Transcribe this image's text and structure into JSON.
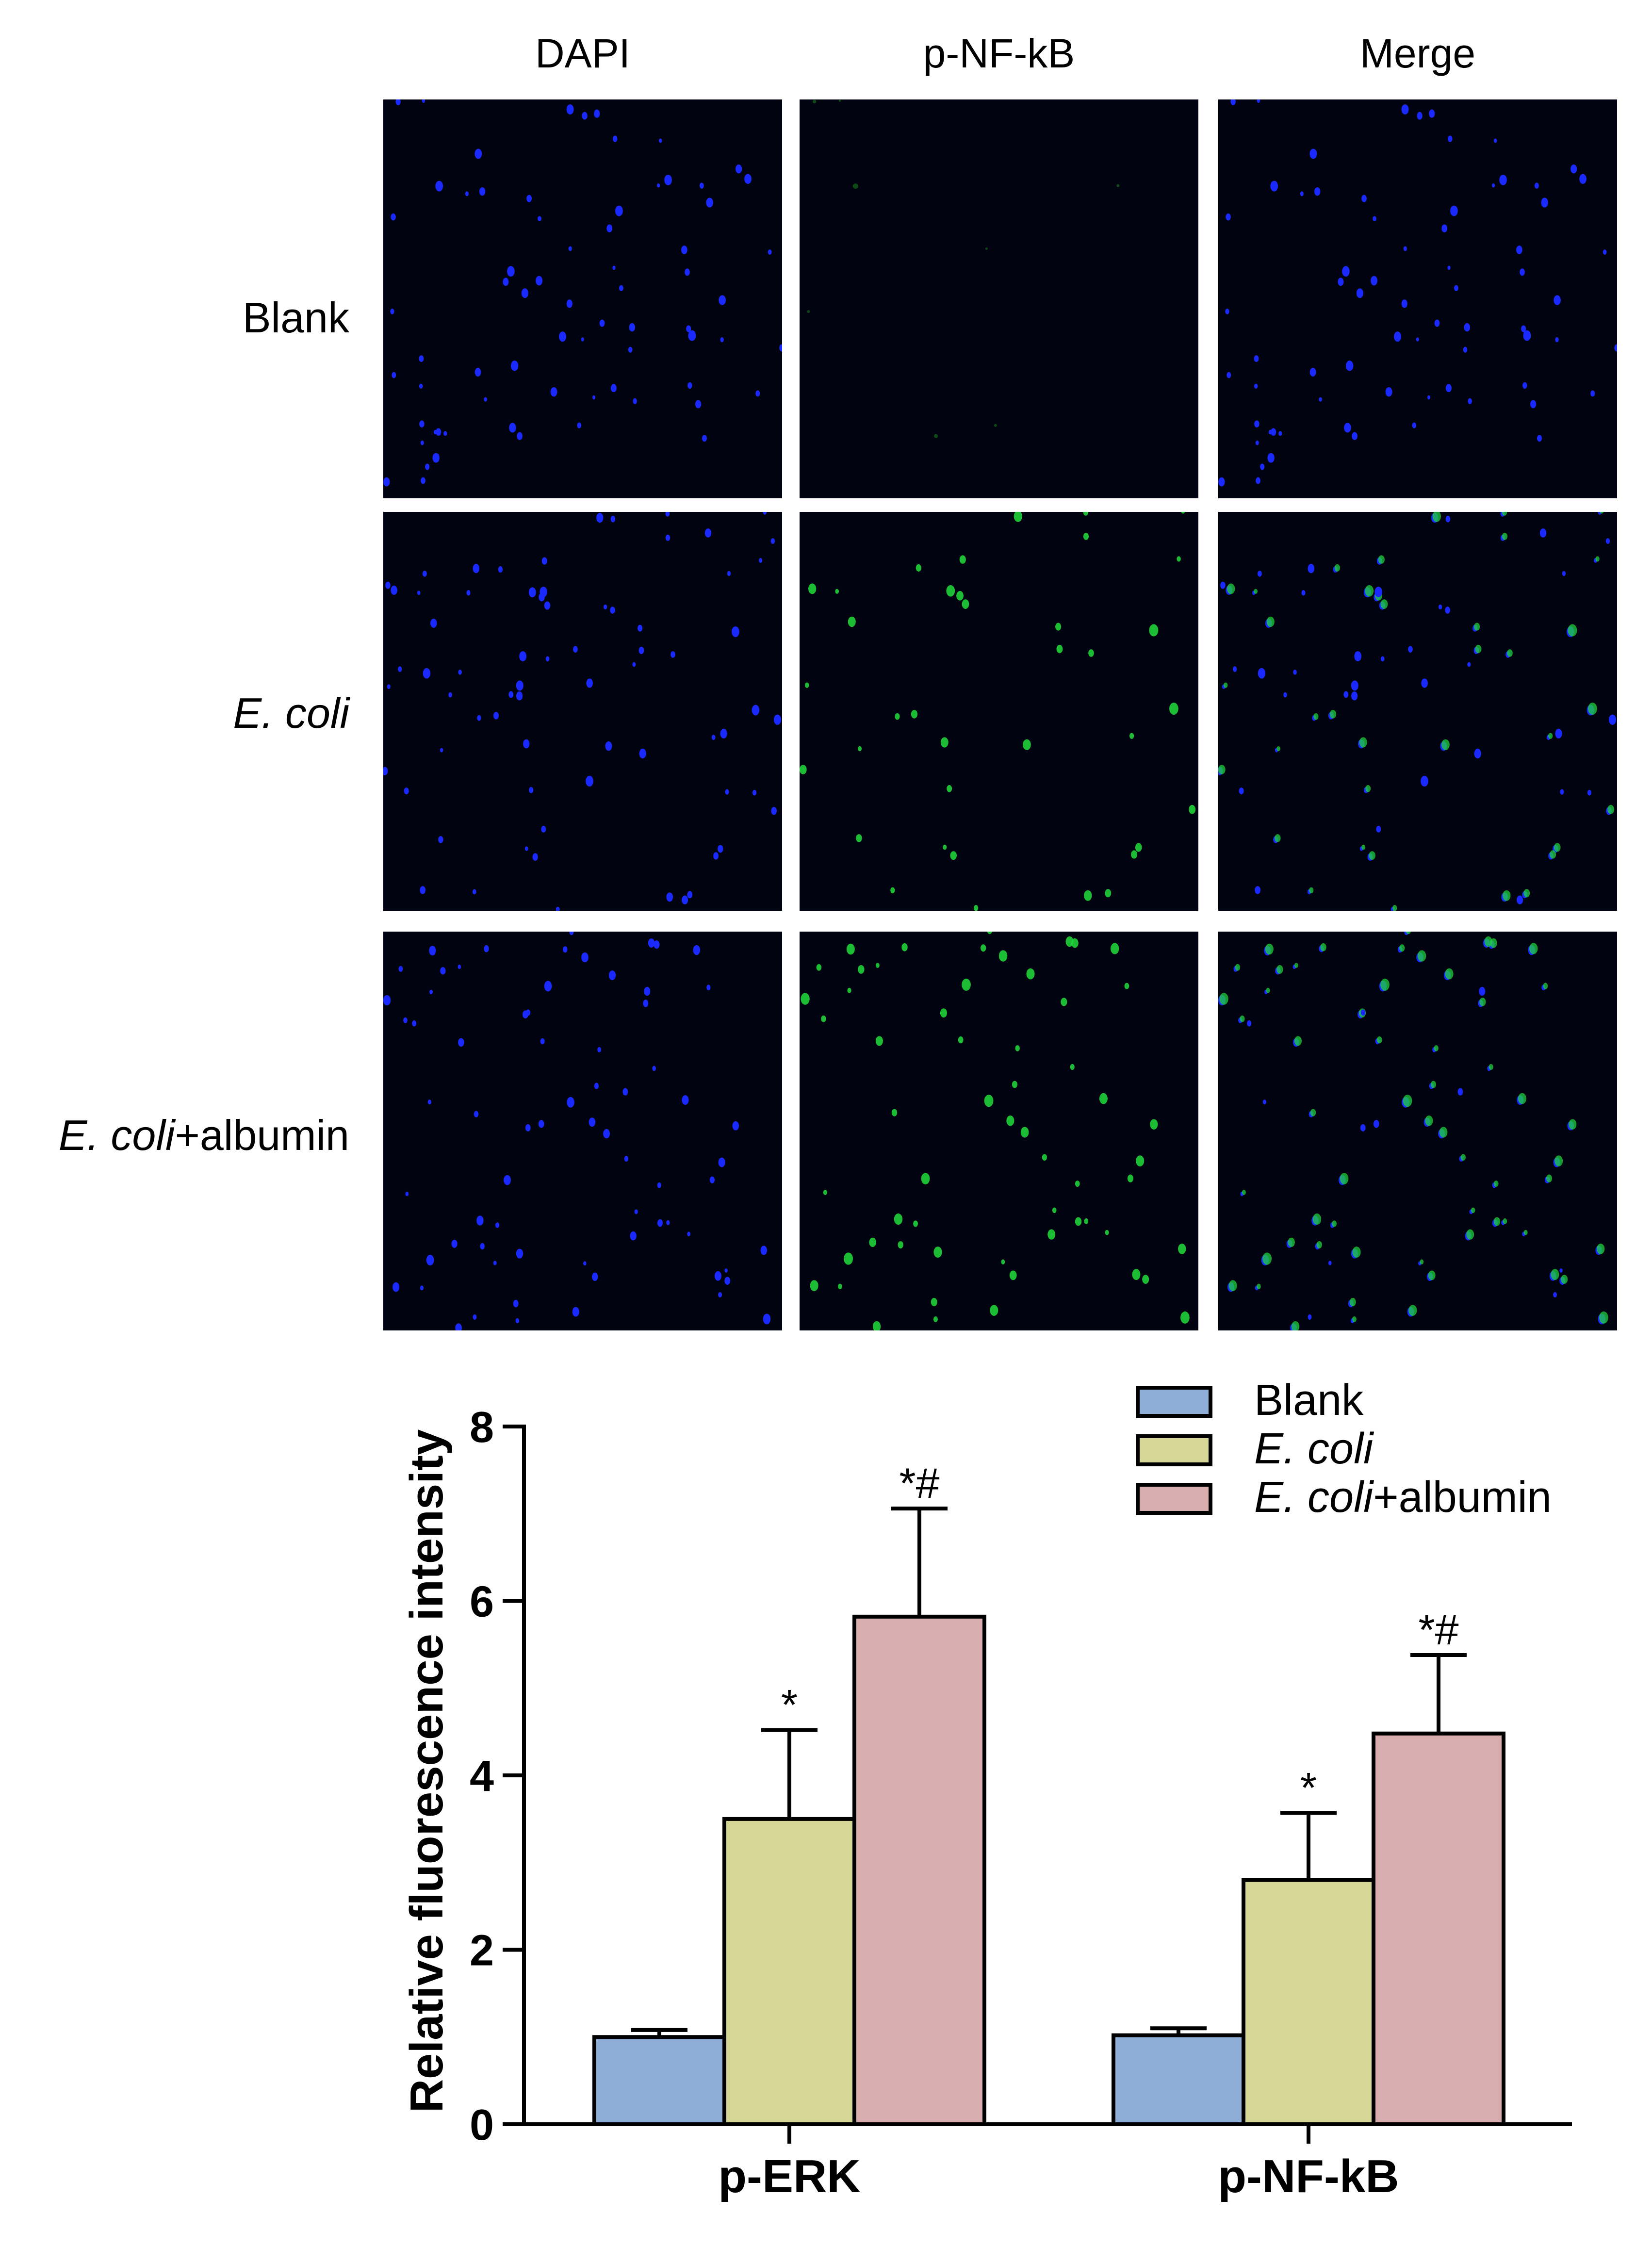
{
  "figure": {
    "columns": [
      "DAPI",
      "p-NF-kB",
      "Merge"
    ],
    "rows": [
      {
        "italic": "",
        "plain": "Blank"
      },
      {
        "italic": "E. coli",
        "plain": ""
      },
      {
        "italic": "E. coli",
        "plain": "+albumin"
      }
    ],
    "colors": {
      "dapi": "#1a2aff",
      "pnfkb": "#1fd23a",
      "panel_bg": "#020310"
    }
  },
  "chart_data": {
    "type": "bar",
    "categories": [
      "p-ERK",
      "p-NF-kB"
    ],
    "ylabel": "Relative fluorescence intensity",
    "ylim": [
      0,
      8
    ],
    "yticks": [
      0,
      2,
      4,
      6,
      8
    ],
    "legend_position": "top-right",
    "series": [
      {
        "name": "Blank",
        "name_italic": "",
        "name_plain": "Blank",
        "color": "#8eaed8",
        "values": [
          1.0,
          1.02
        ],
        "errors": [
          0.08,
          0.08
        ],
        "marks": [
          "",
          ""
        ]
      },
      {
        "name": "E. coli",
        "name_italic": "E. coli",
        "name_plain": "",
        "color": "#d6d696",
        "values": [
          3.5,
          2.8
        ],
        "errors": [
          1.02,
          0.77
        ],
        "marks": [
          "*",
          "*"
        ]
      },
      {
        "name": "E. coli+albumin",
        "name_italic": "E. coli",
        "name_plain": "+albumin",
        "color": "#d8adad",
        "values": [
          5.82,
          4.48
        ],
        "errors": [
          1.24,
          0.9
        ],
        "marks": [
          "*#",
          "*#"
        ]
      }
    ]
  }
}
